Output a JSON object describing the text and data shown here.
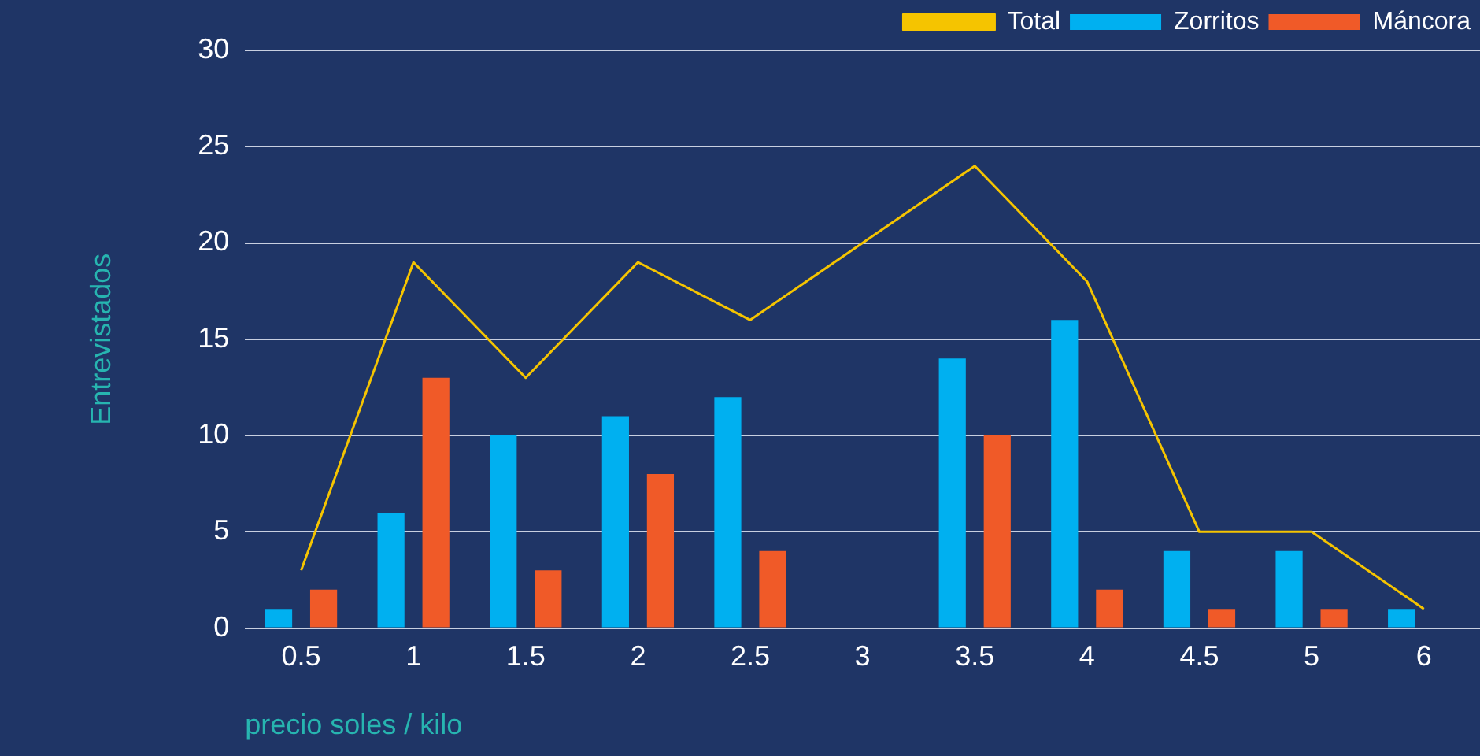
{
  "chart_data": {
    "type": "bar",
    "xlabel": "precio soles / kilo",
    "ylabel": "Entrevistados",
    "categories": [
      "0.5",
      "1",
      "1.5",
      "2",
      "2.5",
      "3",
      "3.5",
      "4",
      "4.5",
      "5",
      "6"
    ],
    "series": [
      {
        "name": "Total",
        "type": "line",
        "color": "#f5c400",
        "values": [
          3,
          19,
          13,
          19,
          16,
          null,
          24,
          18,
          5,
          5,
          1
        ]
      },
      {
        "name": "Zorritos",
        "color": "#00b0f0",
        "values": [
          1,
          6,
          10,
          11,
          12,
          null,
          14,
          16,
          4,
          4,
          1
        ]
      },
      {
        "name": "Máncora",
        "color": "#f05a28",
        "values": [
          2,
          13,
          3,
          8,
          4,
          null,
          10,
          2,
          1,
          1,
          null
        ]
      }
    ],
    "ylim": [
      0,
      30
    ],
    "yticks": [
      0,
      5,
      10,
      15,
      20,
      25,
      30
    ],
    "grid": "y",
    "legend": "top right",
    "marker": "none"
  }
}
